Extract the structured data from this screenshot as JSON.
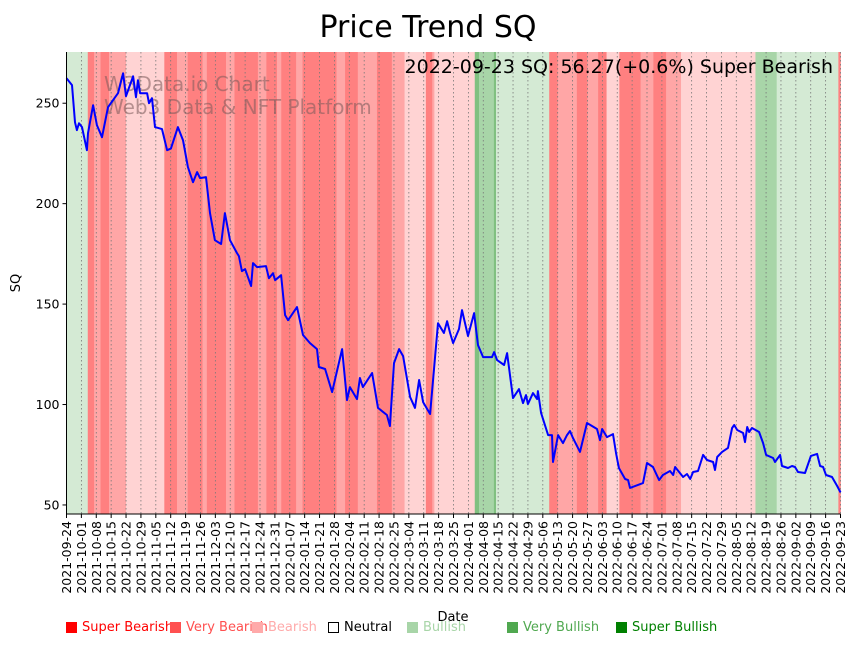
{
  "chart_data": {
    "type": "line",
    "title": "Price Trend SQ",
    "annotation": "2022-09-23 SQ: 56.27(+0.6%) Super Bearish",
    "watermark": [
      "W3Data.io Chart",
      "Web3 Data & NFT Platform"
    ],
    "xlabel": "Date",
    "ylabel": "SQ",
    "start_date": "2021-09-24",
    "end_date": "2022-09-23",
    "ylim": [
      45.5,
      275.5
    ],
    "yticks": [
      50,
      100,
      150,
      200,
      250
    ],
    "xtick_labels": [
      "2021-09-24",
      "2021-10-01",
      "2021-10-08",
      "2021-10-15",
      "2021-10-22",
      "2021-10-29",
      "2021-11-05",
      "2021-11-12",
      "2021-11-19",
      "2021-11-26",
      "2021-12-03",
      "2021-12-10",
      "2021-12-17",
      "2021-12-24",
      "2021-12-31",
      "2022-01-07",
      "2022-01-14",
      "2022-01-21",
      "2022-01-28",
      "2022-02-04",
      "2022-02-11",
      "2022-02-18",
      "2022-02-25",
      "2022-03-04",
      "2022-03-11",
      "2022-03-18",
      "2022-03-25",
      "2022-04-01",
      "2022-04-08",
      "2022-04-15",
      "2022-04-22",
      "2022-04-29",
      "2022-05-06",
      "2022-05-13",
      "2022-05-20",
      "2022-05-27",
      "2022-06-03",
      "2022-06-10",
      "2022-06-17",
      "2022-06-24",
      "2022-07-01",
      "2022-07-08",
      "2022-07-15",
      "2022-07-22",
      "2022-07-29",
      "2022-08-05",
      "2022-08-12",
      "2022-08-19",
      "2022-08-26",
      "2022-09-02",
      "2022-09-09",
      "2022-09-16",
      "2022-09-23"
    ],
    "grid": "vertical-dotted",
    "line_color": "#0000ff",
    "series": [
      {
        "name": "SQ",
        "points_day_value": [
          [
            0,
            262.4
          ],
          [
            2.6,
            259.0
          ],
          [
            4.0,
            240.5
          ],
          [
            4.9,
            236.6
          ],
          [
            5.9,
            240.0
          ],
          [
            7.3,
            238.1
          ],
          [
            9.6,
            226.6
          ],
          [
            10.1,
            235.1
          ],
          [
            12.5,
            249.0
          ],
          [
            14.3,
            239.1
          ],
          [
            16.7,
            233.1
          ],
          [
            19.5,
            248.0
          ],
          [
            24.2,
            255.0
          ],
          [
            26.6,
            264.9
          ],
          [
            28.0,
            253.5
          ],
          [
            31.3,
            263.4
          ],
          [
            32.7,
            253.0
          ],
          [
            33.6,
            261.4
          ],
          [
            34.6,
            255.0
          ],
          [
            37.9,
            255.0
          ],
          [
            38.8,
            250.0
          ],
          [
            40.2,
            252.5
          ],
          [
            41.6,
            238.1
          ],
          [
            44.9,
            237.1
          ],
          [
            47.3,
            226.6
          ],
          [
            49.1,
            227.4
          ],
          [
            52.4,
            238.1
          ],
          [
            54.8,
            231.6
          ],
          [
            57.1,
            218.2
          ],
          [
            59.5,
            210.7
          ],
          [
            61.4,
            215.7
          ],
          [
            62.8,
            212.7
          ],
          [
            65.6,
            213.2
          ],
          [
            67.5,
            195.3
          ],
          [
            69.8,
            181.8
          ],
          [
            72.7,
            179.9
          ],
          [
            74.5,
            195.3
          ],
          [
            76.9,
            181.8
          ],
          [
            80.2,
            175.4
          ],
          [
            81.1,
            173.9
          ],
          [
            82.5,
            166.4
          ],
          [
            84.0,
            167.4
          ],
          [
            86.8,
            159.0
          ],
          [
            87.7,
            170.4
          ],
          [
            89.6,
            168.4
          ],
          [
            93.8,
            168.9
          ],
          [
            95.2,
            162.9
          ],
          [
            97.1,
            165.4
          ],
          [
            98.1,
            161.9
          ],
          [
            100.9,
            164.4
          ],
          [
            102.8,
            144.5
          ],
          [
            104.2,
            142.0
          ],
          [
            108.4,
            148.5
          ],
          [
            111.2,
            134.6
          ],
          [
            114.5,
            130.6
          ],
          [
            117.8,
            127.6
          ],
          [
            118.7,
            118.7
          ],
          [
            121.6,
            117.7
          ],
          [
            124.9,
            106.2
          ],
          [
            129.6,
            127.6
          ],
          [
            131.9,
            102.2
          ],
          [
            133.3,
            108.7
          ],
          [
            136.6,
            102.7
          ],
          [
            138.0,
            113.2
          ],
          [
            139.4,
            108.7
          ],
          [
            143.7,
            115.7
          ],
          [
            146.5,
            98.3
          ],
          [
            150.7,
            94.8
          ],
          [
            152.1,
            89.3
          ],
          [
            154.0,
            120.6
          ],
          [
            156.4,
            127.6
          ],
          [
            158.3,
            124.1
          ],
          [
            161.6,
            103.7
          ],
          [
            163.9,
            98.3
          ],
          [
            165.8,
            112.2
          ],
          [
            167.7,
            101.2
          ],
          [
            171.0,
            95.3
          ],
          [
            174.7,
            140.5
          ],
          [
            177.5,
            135.6
          ],
          [
            179.0,
            141.5
          ],
          [
            180.4,
            135.6
          ],
          [
            181.8,
            130.6
          ],
          [
            184.6,
            137.6
          ],
          [
            186.0,
            147.0
          ],
          [
            188.8,
            134.1
          ],
          [
            191.7,
            145.5
          ],
          [
            193.5,
            129.6
          ],
          [
            195.9,
            123.6
          ],
          [
            200.1,
            123.6
          ],
          [
            201.1,
            126.1
          ],
          [
            202.5,
            122.1
          ],
          [
            205.8,
            119.7
          ],
          [
            207.2,
            125.6
          ],
          [
            210.0,
            103.2
          ],
          [
            212.8,
            107.7
          ],
          [
            214.7,
            100.7
          ],
          [
            216.1,
            104.7
          ],
          [
            217.0,
            100.2
          ],
          [
            219.4,
            105.7
          ],
          [
            221.3,
            102.7
          ],
          [
            221.7,
            106.7
          ],
          [
            223.2,
            95.8
          ],
          [
            226.5,
            84.8
          ],
          [
            228.3,
            84.8
          ],
          [
            228.8,
            71.4
          ],
          [
            231.2,
            84.8
          ],
          [
            233.5,
            80.8
          ],
          [
            235.4,
            84.8
          ],
          [
            236.8,
            86.8
          ],
          [
            238.2,
            83.3
          ],
          [
            241.5,
            76.4
          ],
          [
            244.8,
            90.8
          ],
          [
            249.5,
            87.8
          ],
          [
            250.9,
            82.3
          ],
          [
            251.9,
            87.8
          ],
          [
            254.2,
            83.8
          ],
          [
            257.0,
            85.3
          ],
          [
            258.4,
            75.9
          ],
          [
            259.8,
            68.4
          ],
          [
            262.7,
            62.9
          ],
          [
            264.1,
            62.4
          ],
          [
            265.0,
            58.5
          ],
          [
            271.1,
            60.9
          ],
          [
            273.0,
            70.9
          ],
          [
            275.8,
            68.9
          ],
          [
            278.7,
            62.4
          ],
          [
            280.5,
            64.9
          ],
          [
            283.8,
            66.9
          ],
          [
            285.3,
            64.9
          ],
          [
            286.2,
            68.9
          ],
          [
            290.0,
            63.9
          ],
          [
            291.8,
            65.4
          ],
          [
            293.3,
            62.9
          ],
          [
            294.7,
            66.4
          ],
          [
            297.0,
            66.9
          ],
          [
            299.4,
            74.9
          ],
          [
            301.2,
            72.4
          ],
          [
            304.1,
            71.4
          ],
          [
            305.0,
            67.4
          ],
          [
            306.0,
            73.9
          ],
          [
            308.3,
            76.4
          ],
          [
            311.1,
            78.4
          ],
          [
            313.0,
            88.3
          ],
          [
            314.0,
            89.8
          ],
          [
            315.4,
            87.3
          ],
          [
            318.2,
            85.8
          ],
          [
            319.1,
            81.3
          ],
          [
            320.1,
            88.8
          ],
          [
            321.0,
            86.3
          ],
          [
            322.4,
            88.3
          ],
          [
            325.7,
            86.3
          ],
          [
            327.6,
            80.8
          ],
          [
            329.0,
            74.9
          ],
          [
            332.3,
            73.4
          ],
          [
            333.2,
            71.4
          ],
          [
            335.6,
            74.9
          ],
          [
            336.5,
            69.4
          ],
          [
            339.3,
            68.4
          ],
          [
            341.2,
            69.4
          ],
          [
            342.6,
            68.9
          ],
          [
            344.0,
            66.4
          ],
          [
            347.3,
            65.9
          ],
          [
            350.1,
            74.4
          ],
          [
            353.0,
            75.4
          ],
          [
            354.4,
            69.4
          ],
          [
            355.8,
            68.9
          ],
          [
            357.2,
            64.9
          ],
          [
            360.0,
            63.9
          ],
          [
            362.4,
            59.5
          ],
          [
            364,
            56.27
          ]
        ]
      }
    ],
    "sentiment_bands": [
      {
        "start": 0,
        "end": 10,
        "sentiment": "Bullish"
      },
      {
        "start": 10,
        "end": 13,
        "sentiment": "Super Bearish"
      },
      {
        "start": 13,
        "end": 16,
        "sentiment": "Very Bearish"
      },
      {
        "start": 16,
        "end": 20,
        "sentiment": "Super Bearish"
      },
      {
        "start": 20,
        "end": 28,
        "sentiment": "Very Bearish"
      },
      {
        "start": 28,
        "end": 46,
        "sentiment": "Bearish"
      },
      {
        "start": 46,
        "end": 52,
        "sentiment": "Super Bearish"
      },
      {
        "start": 52,
        "end": 57,
        "sentiment": "Very Bearish"
      },
      {
        "start": 57,
        "end": 64,
        "sentiment": "Super Bearish"
      },
      {
        "start": 64,
        "end": 66,
        "sentiment": "Very Bearish"
      },
      {
        "start": 66,
        "end": 75,
        "sentiment": "Super Bearish"
      },
      {
        "start": 75,
        "end": 79,
        "sentiment": "Very Bearish"
      },
      {
        "start": 79,
        "end": 90,
        "sentiment": "Super Bearish"
      },
      {
        "start": 90,
        "end": 94,
        "sentiment": "Very Bearish"
      },
      {
        "start": 94,
        "end": 99,
        "sentiment": "Super Bearish"
      },
      {
        "start": 99,
        "end": 101,
        "sentiment": "Very Bearish"
      },
      {
        "start": 101,
        "end": 108,
        "sentiment": "Super Bearish"
      },
      {
        "start": 108,
        "end": 111,
        "sentiment": "Very Bearish"
      },
      {
        "start": 111,
        "end": 127,
        "sentiment": "Super Bearish"
      },
      {
        "start": 127,
        "end": 131,
        "sentiment": "Very Bearish"
      },
      {
        "start": 131,
        "end": 137,
        "sentiment": "Super Bearish"
      },
      {
        "start": 137,
        "end": 146,
        "sentiment": "Very Bearish"
      },
      {
        "start": 146,
        "end": 153,
        "sentiment": "Super Bearish"
      },
      {
        "start": 153,
        "end": 159,
        "sentiment": "Very Bearish"
      },
      {
        "start": 159,
        "end": 169,
        "sentiment": "Bearish"
      },
      {
        "start": 169,
        "end": 172,
        "sentiment": "Super Bearish"
      },
      {
        "start": 172,
        "end": 173,
        "sentiment": "Very Bearish"
      },
      {
        "start": 173,
        "end": 192,
        "sentiment": "Bearish"
      },
      {
        "start": 192,
        "end": 194,
        "sentiment": "Super Bullish"
      },
      {
        "start": 194,
        "end": 201,
        "sentiment": "Very Bullish"
      },
      {
        "start": 201,
        "end": 202,
        "sentiment": "Super Bullish"
      },
      {
        "start": 202,
        "end": 227,
        "sentiment": "Bullish"
      },
      {
        "start": 227,
        "end": 231,
        "sentiment": "Super Bearish"
      },
      {
        "start": 231,
        "end": 240,
        "sentiment": "Very Bearish"
      },
      {
        "start": 240,
        "end": 245,
        "sentiment": "Super Bearish"
      },
      {
        "start": 245,
        "end": 250,
        "sentiment": "Very Bearish"
      },
      {
        "start": 250,
        "end": 254,
        "sentiment": "Super Bearish"
      },
      {
        "start": 254,
        "end": 260,
        "sentiment": "Bearish"
      },
      {
        "start": 260,
        "end": 270,
        "sentiment": "Super Bearish"
      },
      {
        "start": 270,
        "end": 276,
        "sentiment": "Very Bearish"
      },
      {
        "start": 276,
        "end": 282,
        "sentiment": "Super Bearish"
      },
      {
        "start": 282,
        "end": 289,
        "sentiment": "Very Bearish"
      },
      {
        "start": 289,
        "end": 324,
        "sentiment": "Bearish"
      },
      {
        "start": 324,
        "end": 334,
        "sentiment": "Very Bullish"
      },
      {
        "start": 334,
        "end": 363,
        "sentiment": "Bullish"
      },
      {
        "start": 363,
        "end": 364,
        "sentiment": "Super Bearish"
      }
    ],
    "band_colors": {
      "Super Bearish": "#ff8080",
      "Very Bearish": "#ffa6a6",
      "Bearish": "#ffd3d3",
      "Neutral": "#ffffff",
      "Bullish": "#d4ead4",
      "Very Bullish": "#a8d5a8",
      "Super Bullish": "#80c080"
    },
    "legend": [
      {
        "label": "Super Bearish",
        "color": "#ff0000"
      },
      {
        "label": "Very Bearish",
        "color": "#ff5050"
      },
      {
        "label": "Bearish",
        "color": "#ffaaaa"
      },
      {
        "label": "Neutral",
        "color": "#000000",
        "outline": true
      },
      {
        "label": "Bullish",
        "color": "#a8d5a8"
      },
      {
        "label": "Very Bullish",
        "color": "#50a850"
      },
      {
        "label": "Super Bullish",
        "color": "#008000"
      }
    ]
  }
}
